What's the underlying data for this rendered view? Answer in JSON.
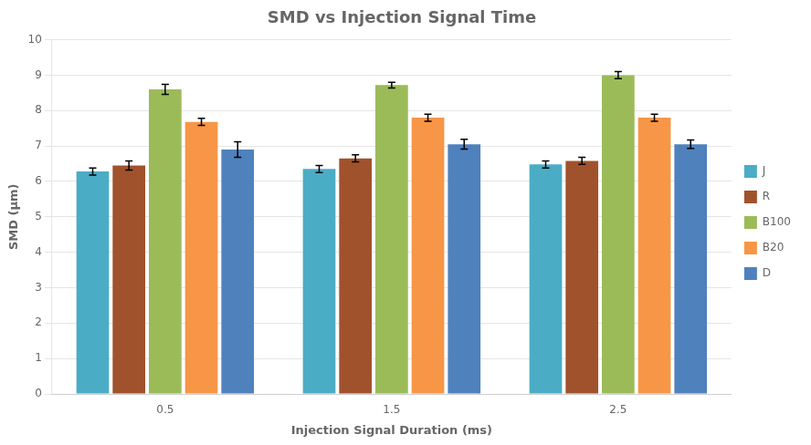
{
  "chart_data": {
    "type": "bar",
    "title": "SMD vs Injection Signal Time",
    "xlabel": "Injection Signal Duration (ms)",
    "ylabel": "SMD (μm)",
    "categories": [
      "0.5",
      "1.5",
      "2.5"
    ],
    "series": [
      {
        "name": "J",
        "color": "#4BACC6",
        "values": [
          6.28,
          6.35,
          6.48
        ],
        "errors": [
          0.1,
          0.1,
          0.1
        ]
      },
      {
        "name": "R",
        "color": "#A0522D",
        "values": [
          6.45,
          6.65,
          6.58
        ],
        "errors": [
          0.13,
          0.1,
          0.1
        ]
      },
      {
        "name": "B100",
        "color": "#9BBB59",
        "values": [
          8.6,
          8.72,
          9.0
        ],
        "errors": [
          0.14,
          0.08,
          0.1
        ]
      },
      {
        "name": "B20",
        "color": "#F79646",
        "values": [
          7.68,
          7.8,
          7.8
        ],
        "errors": [
          0.1,
          0.1,
          0.1
        ]
      },
      {
        "name": "D",
        "color": "#4F81BD",
        "values": [
          6.9,
          7.05,
          7.05
        ],
        "errors": [
          0.22,
          0.14,
          0.12
        ]
      }
    ],
    "ylim": [
      0,
      10
    ],
    "yticks": [
      0,
      1,
      2,
      3,
      4,
      5,
      6,
      7,
      8,
      9,
      10
    ],
    "grid": true,
    "legend": "right"
  }
}
